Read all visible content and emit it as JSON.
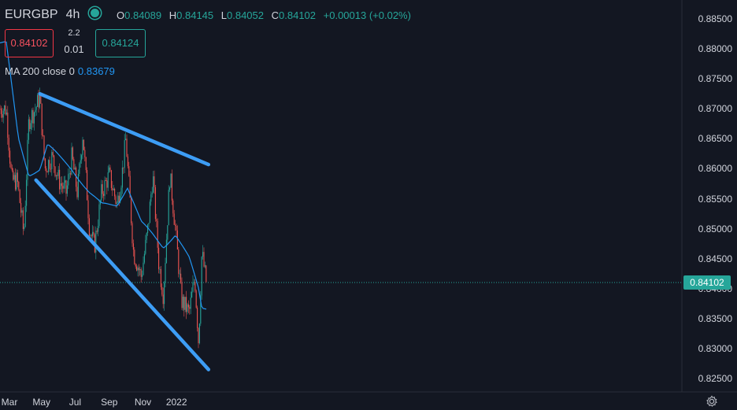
{
  "symbol": "EURGBP",
  "timeframe": "4h",
  "ohlc": {
    "o_label": "O",
    "o": "0.84089",
    "h_label": "H",
    "h": "0.84145",
    "l_label": "L",
    "l": "0.84052",
    "c_label": "C",
    "c": "0.84102",
    "change": "+0.00013 (+0.02%)"
  },
  "trade": {
    "sell_price": "0.84102",
    "spread_top": "2.2",
    "spread_bottom": "0.01",
    "buy_price": "0.84124"
  },
  "indicator": {
    "label": "MA 200 close 0",
    "value": "0.83679"
  },
  "current_price_tag": "0.84102",
  "colors": {
    "background": "#131722",
    "up": "#26a69a",
    "down": "#ef5350",
    "ma": "#2196f3",
    "trendline": "#3d9df5"
  },
  "icons": [
    "status-dot-icon",
    "settings-gear-icon"
  ],
  "chart_data": {
    "type": "candlestick",
    "title": "",
    "xlabel": "",
    "ylabel": "",
    "y_ticks": [
      "0.88500",
      "0.88000",
      "0.87500",
      "0.87000",
      "0.86500",
      "0.86000",
      "0.85500",
      "0.85000",
      "0.84500",
      "0.84000",
      "0.83500",
      "0.83000",
      "0.82500"
    ],
    "x_ticks": [
      "Mar",
      "May",
      "Jul",
      "Sep",
      "Nov",
      "2022"
    ],
    "ylim": [
      0.8235,
      0.8895
    ],
    "price_path": [
      {
        "date": "2021-02-26",
        "close": 0.87
      },
      {
        "date": "2021-03-08",
        "close": 0.858
      },
      {
        "date": "2021-03-18",
        "close": 0.858
      },
      {
        "date": "2021-03-30",
        "close": 0.849
      },
      {
        "date": "2021-04-08",
        "close": 0.868
      },
      {
        "date": "2021-04-20",
        "close": 0.87
      },
      {
        "date": "2021-04-28",
        "close": 0.872
      },
      {
        "date": "2021-05-07",
        "close": 0.86
      },
      {
        "date": "2021-05-20",
        "close": 0.862
      },
      {
        "date": "2021-06-02",
        "close": 0.858
      },
      {
        "date": "2021-06-15",
        "close": 0.856
      },
      {
        "date": "2021-06-25",
        "close": 0.862
      },
      {
        "date": "2021-07-05",
        "close": 0.856
      },
      {
        "date": "2021-07-15",
        "close": 0.866
      },
      {
        "date": "2021-07-27",
        "close": 0.85
      },
      {
        "date": "2021-08-05",
        "close": 0.847
      },
      {
        "date": "2021-08-18",
        "close": 0.856
      },
      {
        "date": "2021-09-01",
        "close": 0.859
      },
      {
        "date": "2021-09-15",
        "close": 0.854
      },
      {
        "date": "2021-09-24",
        "close": 0.859
      },
      {
        "date": "2021-10-01",
        "close": 0.865
      },
      {
        "date": "2021-10-15",
        "close": 0.846
      },
      {
        "date": "2021-10-29",
        "close": 0.842
      },
      {
        "date": "2021-11-10",
        "close": 0.85
      },
      {
        "date": "2021-11-19",
        "close": 0.859
      },
      {
        "date": "2021-11-30",
        "close": 0.844
      },
      {
        "date": "2021-12-08",
        "close": 0.839
      },
      {
        "date": "2021-12-20",
        "close": 0.859
      },
      {
        "date": "2021-12-30",
        "close": 0.85
      },
      {
        "date": "2022-01-10",
        "close": 0.838
      },
      {
        "date": "2022-01-24",
        "close": 0.836
      },
      {
        "date": "2022-02-03",
        "close": 0.842
      },
      {
        "date": "2022-02-10",
        "close": 0.831
      },
      {
        "date": "2022-02-16",
        "close": 0.846
      },
      {
        "date": "2022-02-24",
        "close": 0.841
      }
    ],
    "ma_200_path": [
      {
        "date": "2021-02-26",
        "value": 0.881
      },
      {
        "date": "2021-03-20",
        "value": 0.865
      },
      {
        "date": "2021-04-08",
        "value": 0.859
      },
      {
        "date": "2021-04-28",
        "value": 0.86
      },
      {
        "date": "2021-05-12",
        "value": 0.864
      },
      {
        "date": "2021-06-02",
        "value": 0.862
      },
      {
        "date": "2021-06-25",
        "value": 0.86
      },
      {
        "date": "2021-07-27",
        "value": 0.856
      },
      {
        "date": "2021-08-18",
        "value": 0.854
      },
      {
        "date": "2021-09-15",
        "value": 0.854
      },
      {
        "date": "2021-10-04",
        "value": 0.857
      },
      {
        "date": "2021-10-29",
        "value": 0.851
      },
      {
        "date": "2021-11-19",
        "value": 0.849
      },
      {
        "date": "2021-12-08",
        "value": 0.847
      },
      {
        "date": "2021-12-30",
        "value": 0.849
      },
      {
        "date": "2022-01-24",
        "value": 0.845
      },
      {
        "date": "2022-02-10",
        "value": 0.84
      },
      {
        "date": "2022-02-16",
        "value": 0.8368
      },
      {
        "date": "2022-02-24",
        "value": 0.8368
      }
    ],
    "trendlines": [
      {
        "start": {
          "date": "2021-04-28",
          "value": 0.8725
        },
        "end": {
          "date": "2022-02-28",
          "value": 0.8607
        }
      },
      {
        "start": {
          "date": "2021-04-21",
          "value": 0.8581
        },
        "end": {
          "date": "2022-02-28",
          "value": 0.8265
        }
      }
    ],
    "grid": false,
    "legend": "none"
  }
}
